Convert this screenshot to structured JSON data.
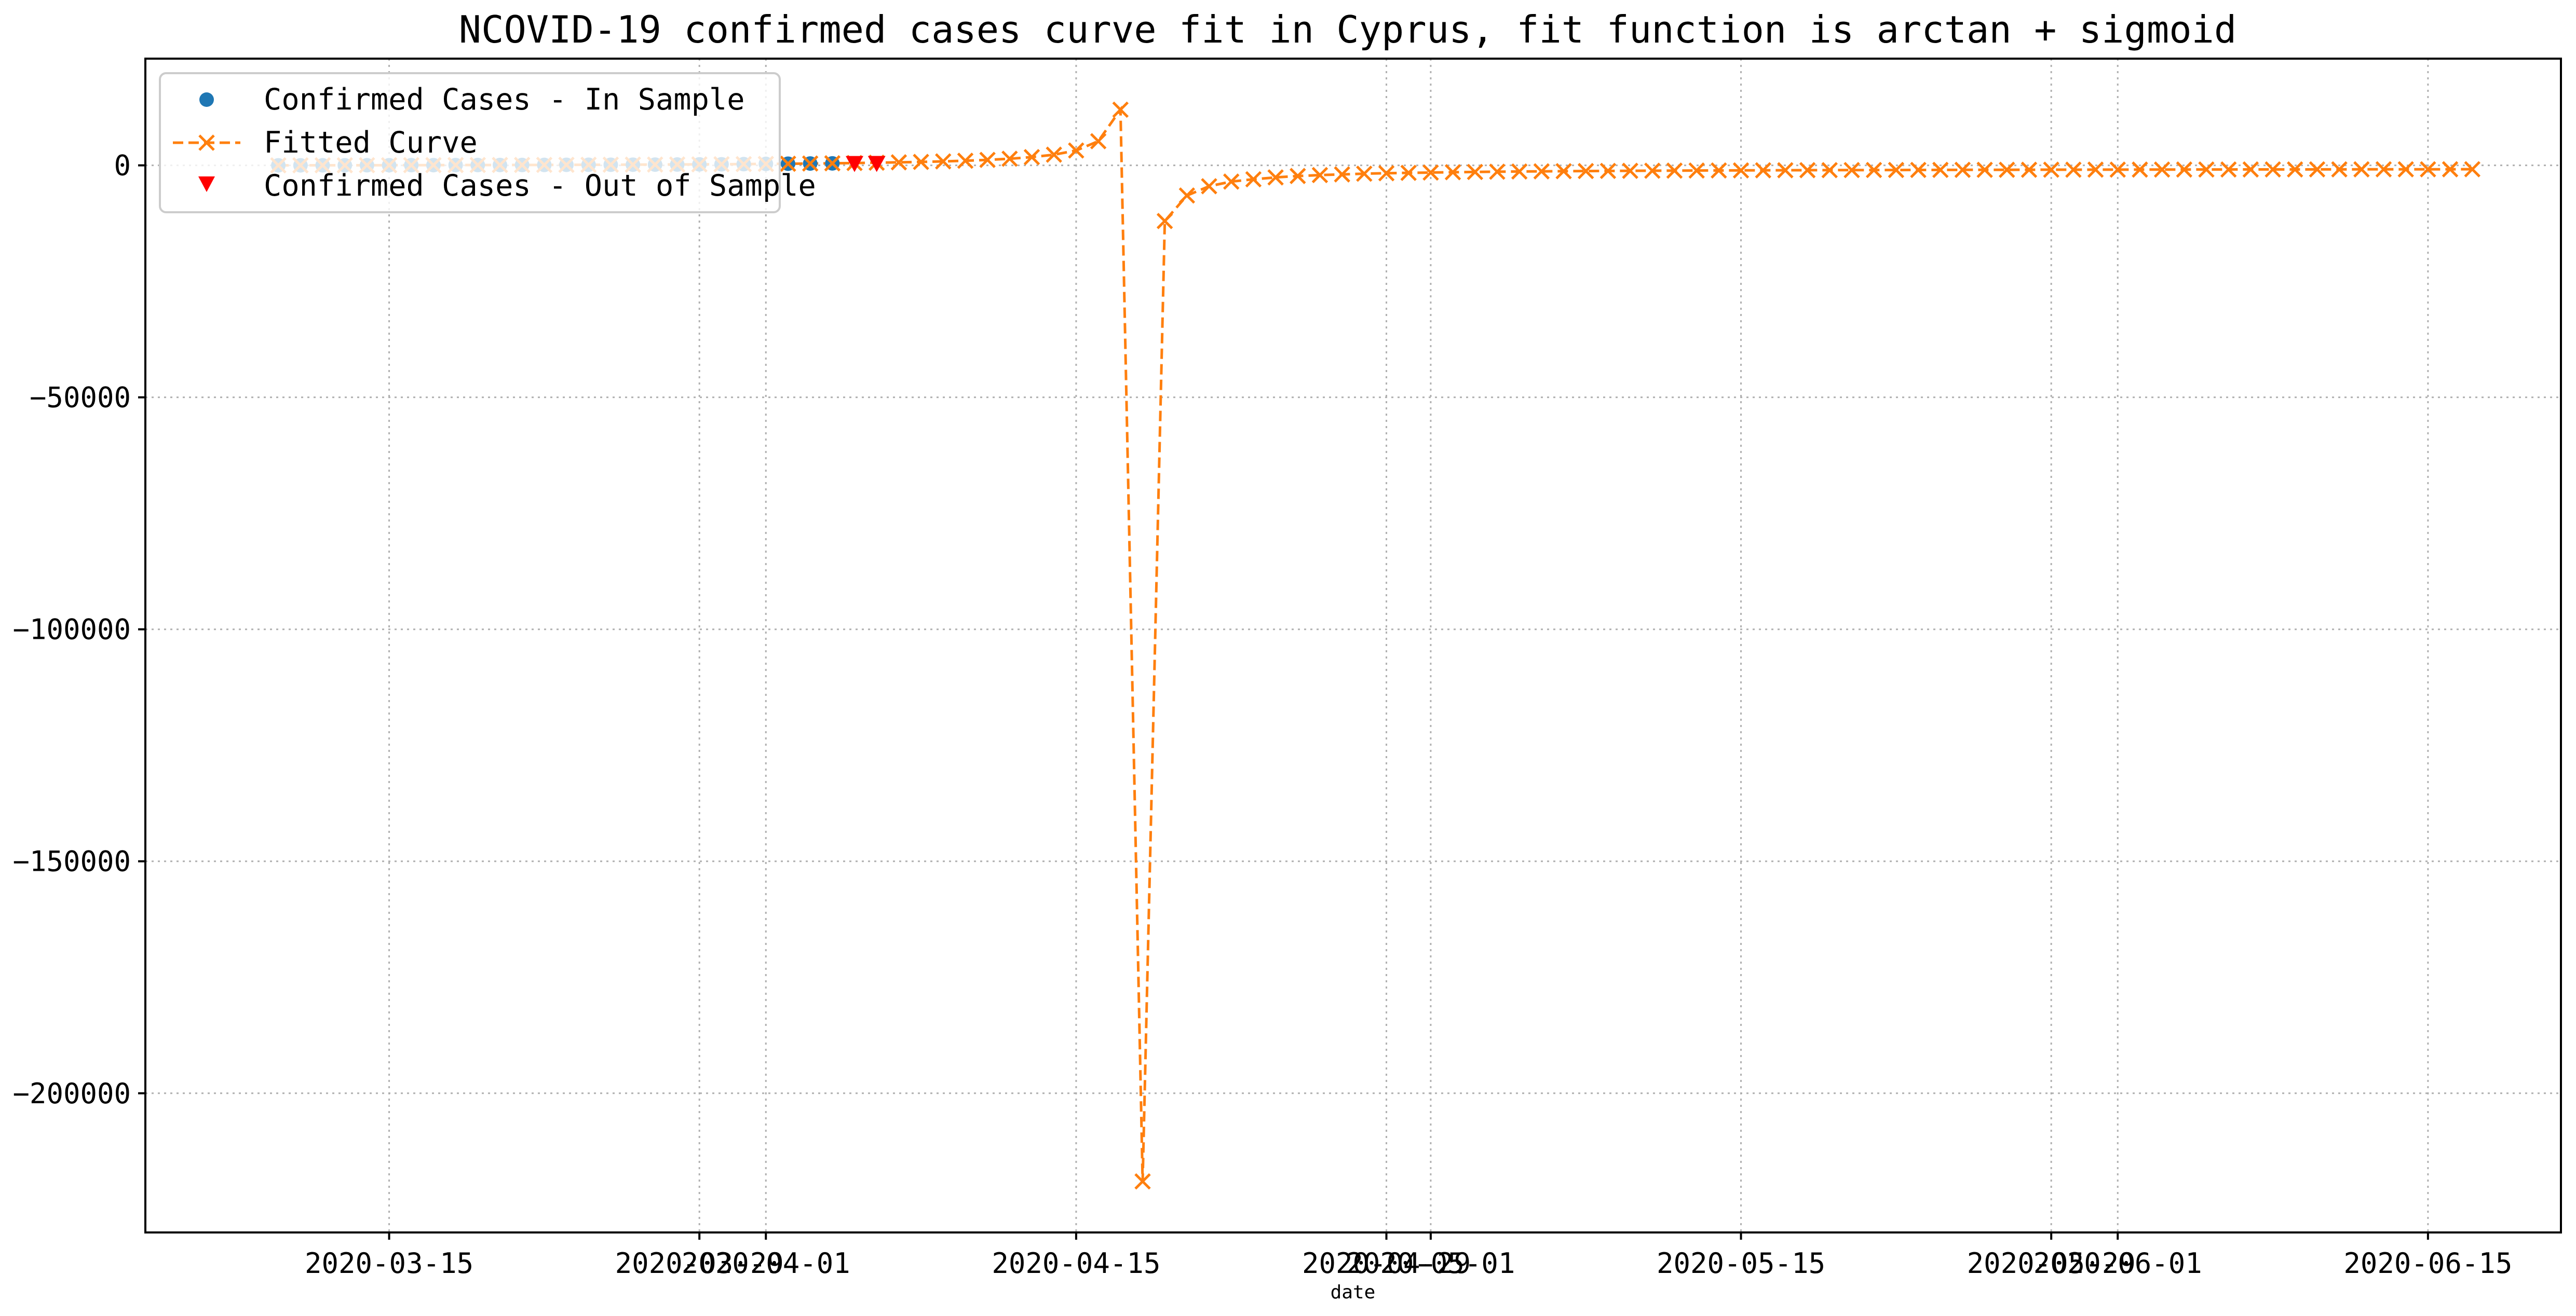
{
  "chart_data": {
    "type": "line",
    "title": "NCOVID-19 confirmed cases curve fit in Cyprus, fit function is arctan + sigmoid",
    "xlabel": "date",
    "ylabel": "",
    "xlim": [
      "2020-03-04",
      "2020-06-21"
    ],
    "ylim": [
      -230000,
      23000
    ],
    "grid": true,
    "legend_position": "top-left",
    "colors": {
      "in_sample": "#1f77b4",
      "fitted": "#ff7f0e",
      "out_sample": "#ff0000"
    },
    "x_ticks": [
      {
        "date": "2020-03-15",
        "label": "2020-03-15"
      },
      {
        "date": "2020-03-29",
        "label": "2020-03-29"
      },
      {
        "date": "2020-04-01",
        "label": "2020-04-01"
      },
      {
        "date": "2020-04-15",
        "label": "2020-04-15"
      },
      {
        "date": "2020-04-29",
        "label": "2020-04-29"
      },
      {
        "date": "2020-05-01",
        "label": "2020-05-01"
      },
      {
        "date": "2020-05-15",
        "label": "2020-05-15"
      },
      {
        "date": "2020-05-29",
        "label": "2020-05-29"
      },
      {
        "date": "2020-06-01",
        "label": "2020-06-01"
      },
      {
        "date": "2020-06-15",
        "label": "2020-06-15"
      }
    ],
    "y_ticks": [
      {
        "value": 0,
        "label": "0"
      },
      {
        "value": -50000,
        "label": "−50000"
      },
      {
        "value": -100000,
        "label": "−100000"
      },
      {
        "value": -150000,
        "label": "−150000"
      },
      {
        "value": -200000,
        "label": "−200000"
      }
    ],
    "series": [
      {
        "name": "Confirmed Cases - In Sample",
        "marker": "circle",
        "x": [
          "2020-03-10",
          "2020-03-11",
          "2020-03-12",
          "2020-03-13",
          "2020-03-14",
          "2020-03-15",
          "2020-03-16",
          "2020-03-17",
          "2020-03-18",
          "2020-03-19",
          "2020-03-20",
          "2020-03-21",
          "2020-03-22",
          "2020-03-23",
          "2020-03-24",
          "2020-03-25",
          "2020-03-26",
          "2020-03-27",
          "2020-03-28",
          "2020-03-29",
          "2020-03-30",
          "2020-03-31",
          "2020-04-01",
          "2020-04-02",
          "2020-04-03",
          "2020-04-04"
        ],
        "y": [
          2,
          6,
          14,
          21,
          26,
          33,
          46,
          49,
          58,
          67,
          75,
          84,
          95,
          116,
          124,
          132,
          146,
          162,
          179,
          214,
          230,
          262,
          320,
          356,
          396,
          426
        ]
      },
      {
        "name": "Fitted Curve",
        "marker": "x",
        "linestyle": "dashed",
        "x": [
          "2020-03-10",
          "2020-03-11",
          "2020-03-12",
          "2020-03-13",
          "2020-03-14",
          "2020-03-15",
          "2020-03-16",
          "2020-03-17",
          "2020-03-18",
          "2020-03-19",
          "2020-03-20",
          "2020-03-21",
          "2020-03-22",
          "2020-03-23",
          "2020-03-24",
          "2020-03-25",
          "2020-03-26",
          "2020-03-27",
          "2020-03-28",
          "2020-03-29",
          "2020-03-30",
          "2020-03-31",
          "2020-04-01",
          "2020-04-02",
          "2020-04-03",
          "2020-04-04",
          "2020-04-05",
          "2020-04-06",
          "2020-04-07",
          "2020-04-08",
          "2020-04-09",
          "2020-04-10",
          "2020-04-11",
          "2020-04-12",
          "2020-04-13",
          "2020-04-14",
          "2020-04-15",
          "2020-04-16",
          "2020-04-17",
          "2020-04-18",
          "2020-04-19",
          "2020-04-20",
          "2020-04-21",
          "2020-04-22",
          "2020-04-23",
          "2020-04-24",
          "2020-04-25",
          "2020-04-26",
          "2020-04-27",
          "2020-04-28",
          "2020-04-29",
          "2020-04-30",
          "2020-05-01",
          "2020-05-02",
          "2020-05-03",
          "2020-05-04",
          "2020-05-05",
          "2020-05-06",
          "2020-05-07",
          "2020-05-08",
          "2020-05-09",
          "2020-05-10",
          "2020-05-11",
          "2020-05-12",
          "2020-05-13",
          "2020-05-14",
          "2020-05-15",
          "2020-05-16",
          "2020-05-17",
          "2020-05-18",
          "2020-05-19",
          "2020-05-20",
          "2020-05-21",
          "2020-05-22",
          "2020-05-23",
          "2020-05-24",
          "2020-05-25",
          "2020-05-26",
          "2020-05-27",
          "2020-05-28",
          "2020-05-29",
          "2020-05-30",
          "2020-05-31",
          "2020-06-01",
          "2020-06-02",
          "2020-06-03",
          "2020-06-04",
          "2020-06-05",
          "2020-06-06",
          "2020-06-07",
          "2020-06-08",
          "2020-06-09",
          "2020-06-10",
          "2020-06-11",
          "2020-06-12",
          "2020-06-13",
          "2020-06-14",
          "2020-06-15",
          "2020-06-16",
          "2020-06-17"
        ],
        "y": [
          2,
          6,
          13,
          20,
          27,
          34,
          44,
          52,
          60,
          68,
          77,
          86,
          98,
          111,
          125,
          139,
          155,
          171,
          191,
          213,
          240,
          270,
          305,
          345,
          390,
          440,
          500,
          570,
          650,
          740,
          850,
          990,
          1180,
          1430,
          1780,
          2300,
          3200,
          5200,
          12000,
          -219000,
          -12000,
          -6500,
          -4500,
          -3500,
          -3000,
          -2600,
          -2300,
          -2100,
          -1950,
          -1800,
          -1700,
          -1620,
          -1550,
          -1480,
          -1420,
          -1370,
          -1330,
          -1290,
          -1260,
          -1230,
          -1200,
          -1180,
          -1160,
          -1140,
          -1120,
          -1100,
          -1085,
          -1070,
          -1055,
          -1040,
          -1030,
          -1020,
          -1010,
          -1000,
          -990,
          -980,
          -972,
          -964,
          -956,
          -948,
          -940,
          -933,
          -926,
          -920,
          -914,
          -908,
          -902,
          -896,
          -890,
          -885,
          -880,
          -875,
          -870,
          -865,
          -860,
          -856,
          -852,
          -848,
          -844,
          -840
        ]
      },
      {
        "name": "Confirmed Cases - Out of Sample",
        "marker": "triangle_down",
        "x": [
          "2020-04-05",
          "2020-04-06"
        ],
        "y": [
          446,
          465
        ]
      }
    ]
  }
}
